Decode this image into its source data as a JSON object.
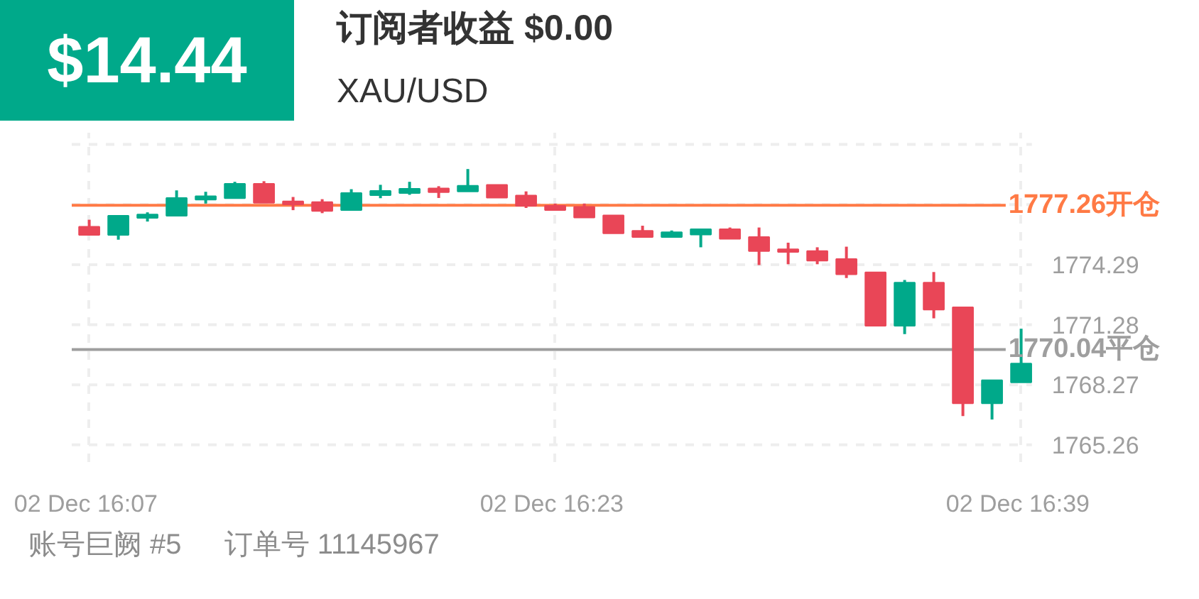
{
  "chart_data": {
    "type": "candlestick",
    "title": "$14.44",
    "subtitle": "订阅者收益 $0.00",
    "annotations": [
      "XAU/USD",
      "账号巨阙 #5",
      "订单号 11145967"
    ],
    "categories": [
      "02 Dec  16:07",
      null,
      null,
      null,
      null,
      null,
      null,
      null,
      null,
      null,
      null,
      null,
      null,
      null,
      null,
      null,
      "02 Dec  16:23",
      null,
      null,
      null,
      null,
      null,
      null,
      null,
      null,
      null,
      null,
      null,
      null,
      null,
      null,
      null,
      "02 Dec  16:39"
    ],
    "ohlc": [
      [
        1776.19,
        1776.54,
        1775.78,
        1775.78
      ],
      [
        1775.78,
        1776.74,
        1775.54,
        1776.74
      ],
      [
        1776.63,
        1776.91,
        1776.45,
        1776.8
      ],
      [
        1776.74,
        1778.01,
        1776.74,
        1777.63
      ],
      [
        1777.55,
        1777.94,
        1777.35,
        1777.72
      ],
      [
        1777.62,
        1778.44,
        1777.62,
        1778.34
      ],
      [
        1778.34,
        1778.47,
        1777.39,
        1777.39
      ],
      [
        1777.46,
        1777.68,
        1777.02,
        1777.31
      ],
      [
        1777.42,
        1777.57,
        1776.87,
        1776.98
      ],
      [
        1777.02,
        1778.07,
        1777.02,
        1777.88
      ],
      [
        1777.77,
        1778.29,
        1777.62,
        1777.98
      ],
      [
        1777.88,
        1778.44,
        1777.79,
        1778.09
      ],
      [
        1778.11,
        1778.22,
        1777.63,
        1777.92
      ],
      [
        1777.96,
        1779.08,
        1777.96,
        1778.24
      ],
      [
        1778.29,
        1778.29,
        1777.65,
        1777.65
      ],
      [
        1777.75,
        1777.96,
        1777.13,
        1777.24
      ],
      [
        1777.24,
        1777.35,
        1777.02,
        1777.02
      ],
      [
        1777.18,
        1777.35,
        1776.65,
        1776.65
      ],
      [
        1776.76,
        1776.76,
        1775.86,
        1775.86
      ],
      [
        1775.98,
        1776.24,
        1775.67,
        1775.67
      ],
      [
        1775.67,
        1776.0,
        1775.67,
        1775.91
      ],
      [
        1775.8,
        1776.06,
        1775.16,
        1776.06
      ],
      [
        1776.06,
        1776.15,
        1775.58,
        1775.58
      ],
      [
        1775.67,
        1776.15,
        1774.27,
        1774.97
      ],
      [
        1775.06,
        1775.39,
        1774.31,
        1774.93
      ],
      [
        1774.97,
        1775.16,
        1774.31,
        1774.49
      ],
      [
        1774.57,
        1775.19,
        1773.62,
        1773.81
      ],
      [
        1773.9,
        1773.9,
        1771.23,
        1771.23
      ],
      [
        1771.23,
        1773.52,
        1770.81,
        1773.39
      ],
      [
        1773.39,
        1773.92,
        1771.6,
        1772.04
      ],
      [
        1772.15,
        1772.15,
        1766.7,
        1767.34
      ],
      [
        1767.34,
        1768.5,
        1766.53,
        1768.5
      ],
      [
        1768.39,
        1771.08,
        1768.39,
        1769.33
      ]
    ],
    "colors": [
      "#e94657",
      "#00a98a",
      "#00a98a",
      "#00a98a",
      "#00a98a",
      "#00a98a",
      "#e94657",
      "#e94657",
      "#e94657",
      "#00a98a",
      "#00a98a",
      "#00a98a",
      "#e94657",
      "#00a98a",
      "#e94657",
      "#e94657",
      "#e94657",
      "#e94657",
      "#e94657",
      "#e94657",
      "#00a98a",
      "#00a98a",
      "#e94657",
      "#e94657",
      "#e94657",
      "#e94657",
      "#e94657",
      "#e94657",
      "#00a98a",
      "#e94657",
      "#e94657",
      "#00a98a",
      "#00a98a"
    ],
    "ylim": [
      1764.4,
      1780.9
    ],
    "yticks": [
      1765.26,
      1768.27,
      1771.28,
      1774.29,
      {
        "value": 1777.3,
        "label": null
      },
      {
        "value": 1780.31,
        "label": null
      }
    ],
    "ref_lines": [
      {
        "axis": "y",
        "value": 1777.26,
        "label": "1777.26开仓",
        "color": "#ff7a45"
      },
      {
        "axis": "y",
        "value": 1770.04,
        "label": "1770.04平仓",
        "color": "#9e9e9e"
      }
    ],
    "grid": true
  }
}
